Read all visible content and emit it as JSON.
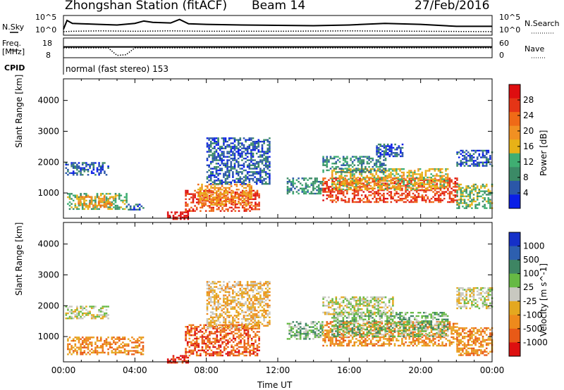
{
  "header": {
    "station_title": "Zhongshan Station (fitACF)",
    "beam": "Beam 14",
    "date": "27/Feb/2016"
  },
  "colors": {
    "power_scale": [
      "#0a1ee6",
      "#2b57a8",
      "#3b8a66",
      "#3fae72",
      "#e7b217",
      "#f19022",
      "#ef6a17",
      "#e53516",
      "#de0e10"
    ],
    "velocity_scale": [
      "#1530c8",
      "#2d5faf",
      "#3e8563",
      "#66b944",
      "#c8c8c0",
      "#e4a81f",
      "#ee8a1c",
      "#e85a17",
      "#dd1010"
    ]
  },
  "chart_data": [
    {
      "type": "line",
      "panel": "noise",
      "ylabel_left": "N.Sky",
      "ylabel_right": "N.Search",
      "ytick_labels_left": [
        "10^5",
        "10^0"
      ],
      "ytick_labels_right": [
        "10^5",
        "10^0"
      ],
      "series": [
        {
          "style": "solid",
          "x_hours": [
            0,
            0.2,
            0.5,
            1,
            2,
            3,
            4,
            4.5,
            5,
            6,
            6.5,
            7,
            8,
            10,
            12,
            14,
            16,
            18,
            20,
            22,
            24
          ],
          "y_frac": [
            0.3,
            0.75,
            0.6,
            0.58,
            0.55,
            0.52,
            0.6,
            0.72,
            0.65,
            0.62,
            0.8,
            0.58,
            0.55,
            0.52,
            0.5,
            0.48,
            0.52,
            0.6,
            0.55,
            0.45,
            0.45
          ]
        },
        {
          "style": "dotted",
          "x_hours": [
            0,
            0.5,
            2,
            4,
            6,
            8,
            12,
            16,
            20,
            24
          ],
          "y_frac": [
            0.18,
            0.2,
            0.22,
            0.2,
            0.22,
            0.2,
            0.2,
            0.22,
            0.2,
            0.18
          ]
        }
      ]
    },
    {
      "type": "line",
      "panel": "frequency",
      "ylabel_left": "Freq.\n[MHz]",
      "ylabel_right": "Nave",
      "ytick_labels_left": [
        "18",
        "8"
      ],
      "ytick_labels_right": [
        "60",
        "0"
      ],
      "series": [
        {
          "style": "solid",
          "x_hours": [
            0,
            24
          ],
          "y_frac": [
            0.55,
            0.55
          ]
        },
        {
          "style": "dotted",
          "x_hours": [
            0,
            2.5,
            3,
            3.5,
            4,
            24
          ],
          "y_frac": [
            0.5,
            0.5,
            0.12,
            0.15,
            0.5,
            0.5
          ]
        }
      ]
    },
    {
      "type": "table",
      "panel": "cpid",
      "label": "CPID",
      "mode_text": "normal (fast stereo) 153"
    },
    {
      "type": "heatmap",
      "panel": "power",
      "ylabel": "Slant Range [km]",
      "ytick_labels": [
        "1000",
        "2000",
        "3000",
        "4000"
      ],
      "yticks": [
        1000,
        2000,
        3000,
        4000
      ],
      "ylim": [
        180,
        4700
      ],
      "xlim": [
        0,
        24
      ],
      "colorbar_label": "Power [dB]",
      "colorbar_ticks": [
        "4",
        "8",
        "12",
        "16",
        "20",
        "24",
        "28"
      ],
      "blobs": [
        {
          "x": [
            0.1,
            2.5
          ],
          "r": [
            1600,
            2000
          ],
          "c": 1
        },
        {
          "x": [
            0.2,
            3.5
          ],
          "r": [
            500,
            1000
          ],
          "c": 3
        },
        {
          "x": [
            0.8,
            2.8
          ],
          "r": [
            550,
            900
          ],
          "c": 5
        },
        {
          "x": [
            3.5,
            4.5
          ],
          "r": [
            450,
            650
          ],
          "c": 1
        },
        {
          "x": [
            5.8,
            7.0
          ],
          "r": [
            180,
            400
          ],
          "c": 8
        },
        {
          "x": [
            6.8,
            11.0
          ],
          "r": [
            400,
            1100
          ],
          "c": 7
        },
        {
          "x": [
            7.5,
            10.5
          ],
          "r": [
            600,
            1300
          ],
          "c": 5
        },
        {
          "x": [
            8.0,
            11.5
          ],
          "r": [
            1300,
            2800
          ],
          "c": 1
        },
        {
          "x": [
            12.5,
            14.5
          ],
          "r": [
            1000,
            1500
          ],
          "c": 2
        },
        {
          "x": [
            14.5,
            22.0
          ],
          "r": [
            700,
            1500
          ],
          "c": 7
        },
        {
          "x": [
            15.0,
            21.5
          ],
          "r": [
            1100,
            1800
          ],
          "c": 4
        },
        {
          "x": [
            14.5,
            18.0
          ],
          "r": [
            1700,
            2200
          ],
          "c": 2
        },
        {
          "x": [
            17.5,
            19.0
          ],
          "r": [
            2200,
            2600
          ],
          "c": 1
        },
        {
          "x": [
            22.0,
            24.0
          ],
          "r": [
            1900,
            2400
          ],
          "c": 1
        },
        {
          "x": [
            22.0,
            24.0
          ],
          "r": [
            500,
            1300
          ],
          "c": 3
        }
      ]
    },
    {
      "type": "heatmap",
      "panel": "velocity",
      "ylabel": "Slant Range [km]",
      "ytick_labels": [
        "1000",
        "2000",
        "3000",
        "4000"
      ],
      "yticks": [
        1000,
        2000,
        3000,
        4000
      ],
      "ylim": [
        180,
        4700
      ],
      "xlim": [
        0,
        24
      ],
      "xtick_labels": [
        "00:00",
        "04:00",
        "08:00",
        "12:00",
        "16:00",
        "20:00",
        "00:00"
      ],
      "xticks": [
        0,
        4,
        8,
        12,
        16,
        20,
        24
      ],
      "xlabel": "Time UT",
      "colorbar_label": "Velocity [m s^-1]",
      "colorbar_ticks": [
        "1000",
        "500",
        "100",
        "25",
        "-25",
        "-100",
        "-500",
        "-1000"
      ],
      "blobs": [
        {
          "x": [
            0.1,
            2.5
          ],
          "r": [
            1600,
            2000
          ],
          "c": 4
        },
        {
          "x": [
            0.2,
            4.5
          ],
          "r": [
            400,
            1000
          ],
          "c": 6
        },
        {
          "x": [
            5.8,
            7.0
          ],
          "r": [
            180,
            400
          ],
          "c": 8
        },
        {
          "x": [
            6.8,
            11.0
          ],
          "r": [
            400,
            1400
          ],
          "c": 7
        },
        {
          "x": [
            8.0,
            11.5
          ],
          "r": [
            1300,
            2800
          ],
          "c": 5
        },
        {
          "x": [
            12.5,
            14.5
          ],
          "r": [
            900,
            1500
          ],
          "c": 3
        },
        {
          "x": [
            14.5,
            22.0
          ],
          "r": [
            700,
            1500
          ],
          "c": 6
        },
        {
          "x": [
            15.0,
            21.5
          ],
          "r": [
            1000,
            1800
          ],
          "c": 3
        },
        {
          "x": [
            14.5,
            18.5
          ],
          "r": [
            1700,
            2300
          ],
          "c": 4
        },
        {
          "x": [
            22.0,
            24.0
          ],
          "r": [
            1900,
            2600
          ],
          "c": 4
        },
        {
          "x": [
            22.0,
            24.0
          ],
          "r": [
            400,
            1300
          ],
          "c": 6
        }
      ]
    }
  ]
}
